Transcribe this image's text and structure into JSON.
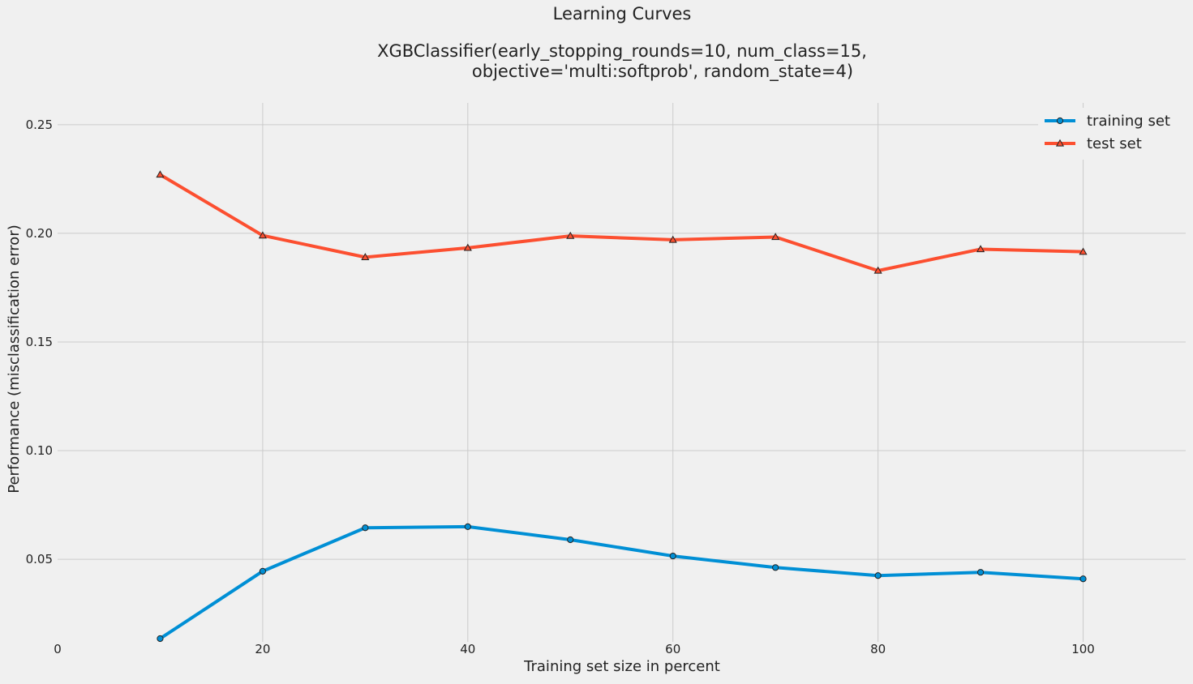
{
  "chart_data": {
    "type": "line",
    "title": "Learning Curves",
    "subtitle_lines": [
      "XGBClassifier(early_stopping_rounds=10, num_class=15,",
      "objective='multi:softprob', random_state=4)"
    ],
    "xlabel": "Training set size in percent",
    "ylabel": "Performance (misclassification error)",
    "xlim": [
      0,
      110
    ],
    "ylim": [
      0.012,
      0.26
    ],
    "xticks": [
      0,
      20,
      40,
      60,
      80,
      100
    ],
    "yticks": [
      0.05,
      0.1,
      0.15,
      0.2,
      0.25
    ],
    "ytick_labels": [
      "0.05",
      "0.10",
      "0.15",
      "0.20",
      "0.25"
    ],
    "grid": true,
    "legend_position": "top-right",
    "x": [
      10,
      20,
      30,
      40,
      50,
      60,
      70,
      80,
      90,
      100
    ],
    "series": [
      {
        "name": "training set",
        "marker": "circle",
        "color": "#008fd5",
        "values": [
          0.0135,
          0.0445,
          0.0645,
          0.065,
          0.059,
          0.0515,
          0.0462,
          0.0425,
          0.044,
          0.041
        ]
      },
      {
        "name": "test set",
        "marker": "triangle",
        "color": "#fc4f30",
        "values": [
          0.227,
          0.199,
          0.189,
          0.1933,
          0.1988,
          0.197,
          0.1983,
          0.1828,
          0.1927,
          0.1915
        ]
      }
    ]
  }
}
